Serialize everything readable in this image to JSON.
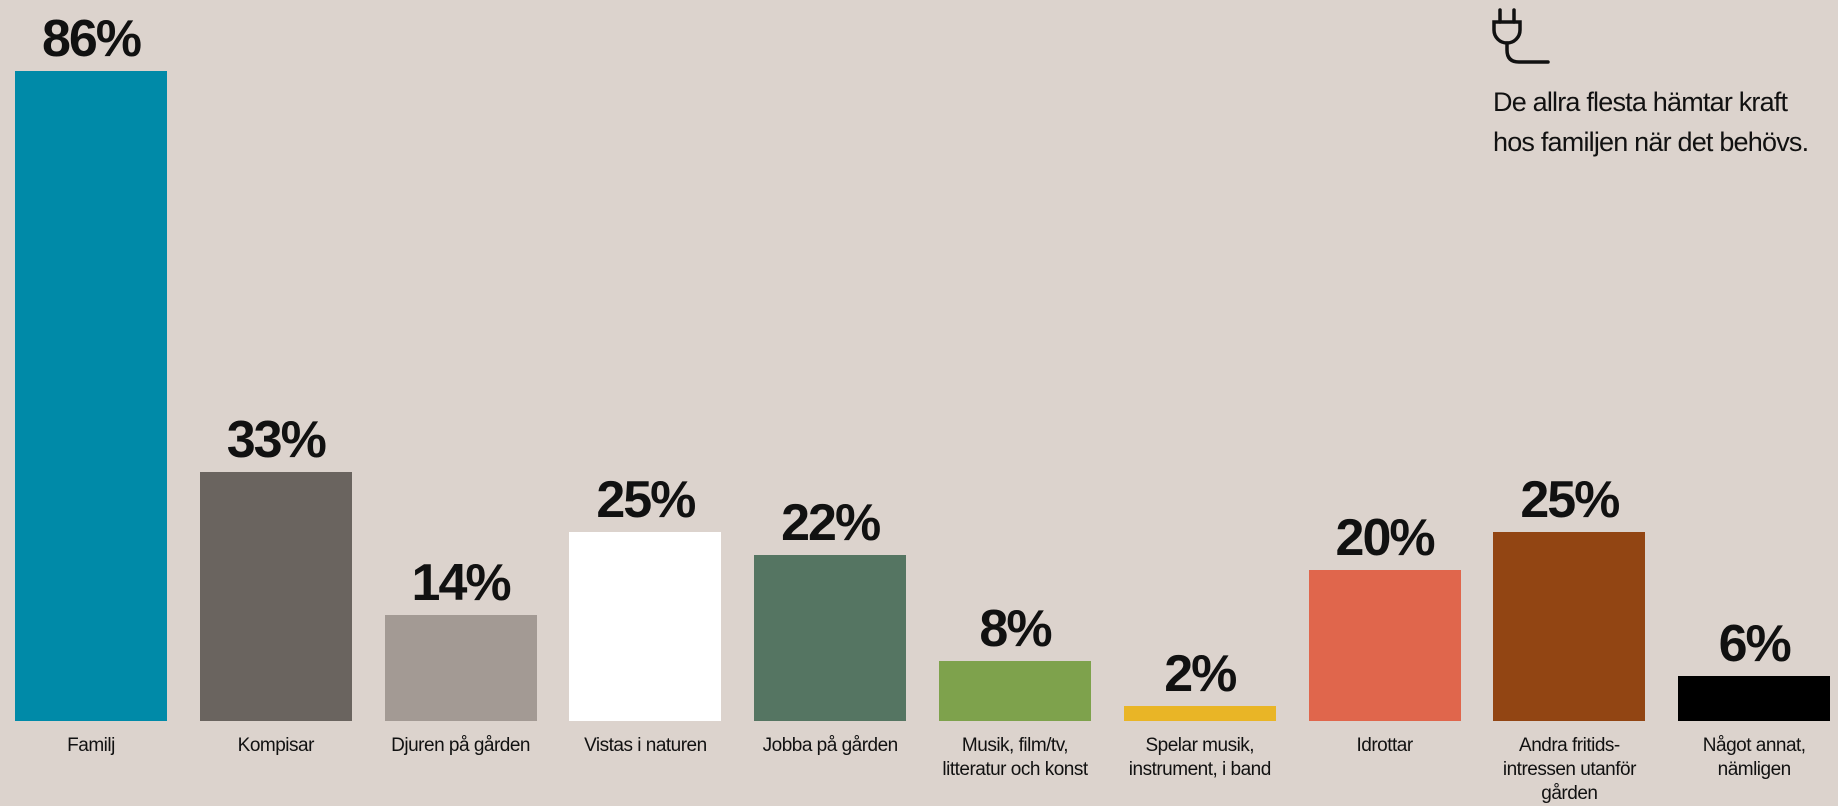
{
  "chart_data": {
    "type": "bar",
    "categories": [
      "Familj",
      "Kompisar",
      "Djuren på gården",
      "Vistas i naturen",
      "Jobba på gården",
      "Musik, film/tv, litteratur och konst",
      "Spelar musik, instrument, i band",
      "Idrottar",
      "Andra fritids-intressen utanför gården",
      "Något annat, nämligen"
    ],
    "values": [
      86,
      33,
      14,
      25,
      22,
      8,
      2,
      20,
      25,
      6
    ],
    "value_labels": [
      "86%",
      "33%",
      "14%",
      "25%",
      "22%",
      "8%",
      "2%",
      "20%",
      "25%",
      "6%"
    ],
    "colors": [
      "#008aa8",
      "#6a645f",
      "#a39a94",
      "#ffffff",
      "#557562",
      "#7ea24c",
      "#e9b526",
      "#e0664c",
      "#924513",
      "#000000"
    ],
    "annotation": [
      "De allra flesta hämtar kraft",
      "hos familjen när det behövs."
    ]
  }
}
